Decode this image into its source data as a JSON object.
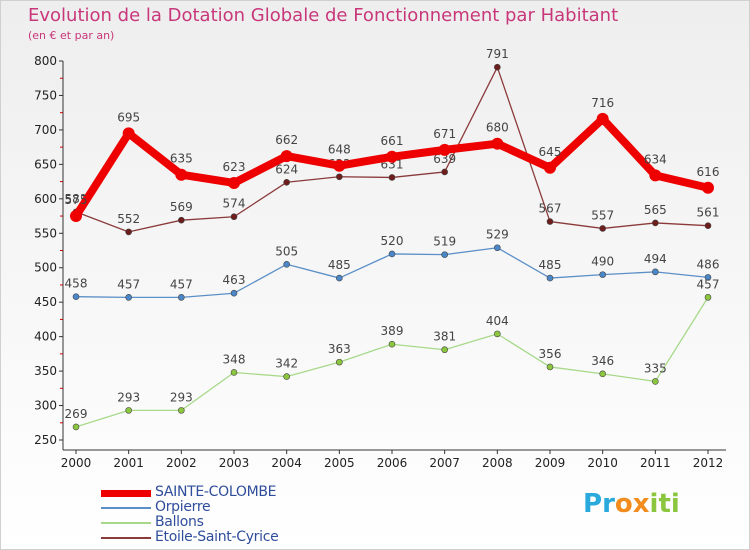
{
  "header": {
    "title": "Evolution de la Dotation Globale de Fonctionnement par Habitant",
    "subtitle": "(en € et par an)"
  },
  "logo": {
    "text": "Proxiti",
    "letters": [
      "P",
      "r",
      "o",
      "x",
      "i",
      "t",
      "i"
    ],
    "colors": [
      "#2aa9dc",
      "#2aa9dc",
      "#f28c1e",
      "#f28c1e",
      "#8cc63f",
      "#8cc63f",
      "#8cc63f"
    ]
  },
  "chart_data": {
    "type": "line",
    "title": "Evolution de la Dotation Globale de Fonctionnement par Habitant",
    "subtitle": "(en € et par an)",
    "xlabel": "",
    "ylabel": "",
    "ylim": [
      250,
      800
    ],
    "yticks": [
      250,
      300,
      350,
      400,
      450,
      500,
      550,
      600,
      650,
      700,
      750,
      800
    ],
    "grid": false,
    "legend_position": "bottom-left",
    "categories": [
      "2000",
      "2001",
      "2002",
      "2003",
      "2004",
      "2005",
      "2006",
      "2007",
      "2008",
      "2009",
      "2010",
      "2011",
      "2012"
    ],
    "series": [
      {
        "name": "SAINTE-COLOMBE",
        "color": "#ee0000",
        "marker": "#ee0000",
        "values": [
          575,
          695,
          635,
          623,
          662,
          648,
          661,
          671,
          680,
          645,
          716,
          634,
          616
        ],
        "labels": [
          "575",
          "695",
          "635",
          "623",
          "662",
          "648",
          "661",
          "671",
          "680",
          "645",
          "716",
          "634",
          "616"
        ]
      },
      {
        "name": "Orpierre",
        "color": "#5b8fc7",
        "marker": "#4a87c8",
        "values": [
          458,
          457,
          457,
          463,
          505,
          485,
          520,
          519,
          529,
          485,
          490,
          494,
          486
        ],
        "labels": [
          "458",
          "457",
          "457",
          "463",
          "505",
          "485",
          "520",
          "519",
          "529",
          "485",
          "490",
          "494",
          "486"
        ]
      },
      {
        "name": "Ballons",
        "color": "#a8d98a",
        "marker": "#8cc63f",
        "values": [
          269,
          293,
          293,
          348,
          342,
          363,
          389,
          381,
          404,
          356,
          346,
          335,
          457
        ],
        "labels": [
          "269",
          "293",
          "293",
          "348",
          "342",
          "363",
          "389",
          "381",
          "404",
          "356",
          "346",
          "335",
          "457"
        ]
      },
      {
        "name": "Etoile-Saint-Cyrice",
        "color": "#8b3a3a",
        "marker": "#6e1d1d",
        "values": [
          581,
          552,
          569,
          574,
          624,
          632,
          631,
          639,
          791,
          567,
          557,
          565,
          561
        ],
        "labels": [
          "581",
          "552",
          "569",
          "574",
          "624",
          "632",
          "631",
          "639",
          "791",
          "567",
          "557",
          "565",
          "561"
        ]
      }
    ]
  }
}
